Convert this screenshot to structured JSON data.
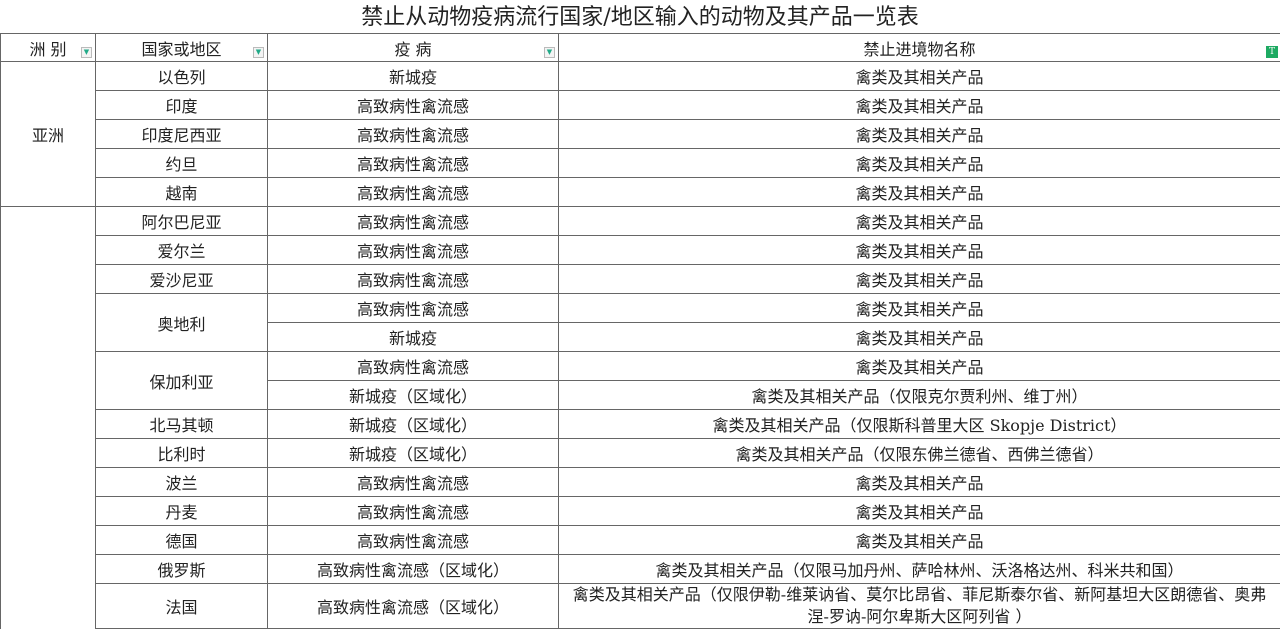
{
  "title": "禁止从动物疫病流行国家/地区输入的动物及其产品一览表",
  "headers": [
    "洲 别",
    "国家或地区",
    "疫 病",
    "禁止进境物名称"
  ],
  "icons": {
    "filter": "filter-dropdown-icon",
    "active_filter": "active-filter-icon",
    "accent": "#1eaa62"
  },
  "continents": [
    {
      "name": "亚洲",
      "count": 5
    },
    {
      "name": "",
      "count": 14
    }
  ],
  "countries": [
    {
      "name": "以色列",
      "rows": [
        [
          "新城疫",
          "禽类及其相关产品"
        ]
      ]
    },
    {
      "name": "印度",
      "rows": [
        [
          "高致病性禽流感",
          "禽类及其相关产品"
        ]
      ]
    },
    {
      "name": "印度尼西亚",
      "rows": [
        [
          "高致病性禽流感",
          "禽类及其相关产品"
        ]
      ]
    },
    {
      "name": "约旦",
      "rows": [
        [
          "高致病性禽流感",
          "禽类及其相关产品"
        ]
      ]
    },
    {
      "name": "越南",
      "rows": [
        [
          "高致病性禽流感",
          "禽类及其相关产品"
        ]
      ]
    },
    {
      "name": "阿尔巴尼亚",
      "rows": [
        [
          "高致病性禽流感",
          "禽类及其相关产品"
        ]
      ]
    },
    {
      "name": "爱尔兰",
      "rows": [
        [
          "高致病性禽流感",
          "禽类及其相关产品"
        ]
      ]
    },
    {
      "name": "爱沙尼亚",
      "rows": [
        [
          "高致病性禽流感",
          "禽类及其相关产品"
        ]
      ]
    },
    {
      "name": "奥地利",
      "rows": [
        [
          "高致病性禽流感",
          "禽类及其相关产品"
        ],
        [
          "新城疫",
          "禽类及其相关产品"
        ]
      ]
    },
    {
      "name": "保加利亚",
      "rows": [
        [
          "高致病性禽流感",
          "禽类及其相关产品"
        ],
        [
          "新城疫（区域化）",
          "禽类及其相关产品（仅限克尔贾利州、维丁州）"
        ]
      ]
    },
    {
      "name": "北马其顿",
      "rows": [
        [
          "新城疫（区域化）",
          "禽类及其相关产品（仅限斯科普里大区 Skopje District）"
        ]
      ]
    },
    {
      "name": "比利时",
      "rows": [
        [
          "新城疫（区域化）",
          "禽类及其相关产品（仅限东佛兰德省、西佛兰德省）"
        ]
      ]
    },
    {
      "name": "波兰",
      "rows": [
        [
          "高致病性禽流感",
          "禽类及其相关产品"
        ]
      ]
    },
    {
      "name": "丹麦",
      "rows": [
        [
          "高致病性禽流感",
          "禽类及其相关产品"
        ]
      ]
    },
    {
      "name": "德国",
      "rows": [
        [
          "高致病性禽流感",
          "禽类及其相关产品"
        ]
      ]
    },
    {
      "name": "俄罗斯",
      "rows": [
        [
          "高致病性禽流感（区域化）",
          "禽类及其相关产品（仅限马加丹州、萨哈林州、沃洛格达州、科米共和国）"
        ]
      ]
    },
    {
      "name": "法国",
      "rows": [
        [
          "高致病性禽流感（区域化）",
          "禽类及其相关产品（仅限伊勒-维莱讷省、莫尔比昂省、菲尼斯泰尔省、新阿基坦大区朗德省、奥弗涅-罗讷-阿尔卑斯大区阿列省 ）"
        ]
      ]
    }
  ]
}
